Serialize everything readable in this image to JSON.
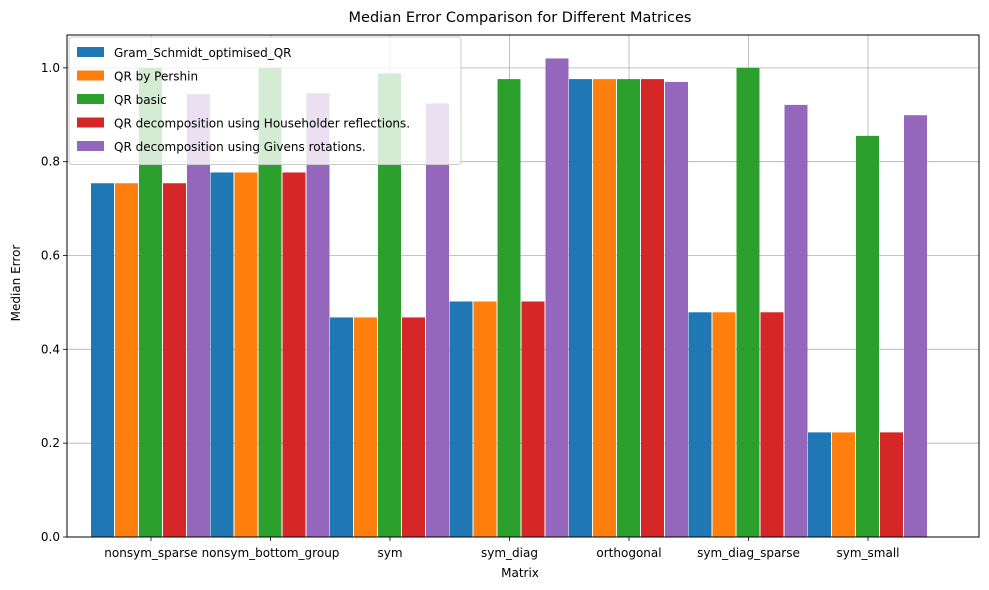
{
  "chart_data": {
    "type": "bar",
    "title": "Median Error Comparison for Different Matrices",
    "xlabel": "Matrix",
    "ylabel": "Median Error",
    "ylim": [
      0,
      1.07
    ],
    "yticks": [
      "0.0",
      "0.2",
      "0.4",
      "0.6",
      "0.8",
      "1.0"
    ],
    "grid": true,
    "legend_position": "top-left",
    "categories": [
      "nonsym_sparse",
      "nonsym_bottom_group",
      "sym",
      "sym_diag",
      "orthogonal",
      "sym_diag_sparse",
      "sym_small"
    ],
    "series": [
      {
        "name": "Gram_Schmidt_optimised_QR",
        "color": "#1f77b4",
        "values": [
          0.754,
          0.777,
          0.468,
          0.502,
          0.976,
          0.479,
          0.223
        ]
      },
      {
        "name": "QR by Pershin",
        "color": "#ff7f0e",
        "values": [
          0.754,
          0.777,
          0.468,
          0.502,
          0.976,
          0.479,
          0.223
        ]
      },
      {
        "name": "QR basic",
        "color": "#2ca02c",
        "values": [
          1.0,
          1.0,
          0.988,
          0.976,
          0.976,
          1.0,
          0.855
        ]
      },
      {
        "name": "QR decomposition using Householder reflections.",
        "color": "#d62728",
        "values": [
          0.754,
          0.777,
          0.468,
          0.502,
          0.976,
          0.479,
          0.223
        ]
      },
      {
        "name": "QR decomposition using Givens rotations.",
        "color": "#9467bd",
        "values": [
          0.944,
          0.946,
          0.924,
          1.02,
          0.97,
          0.921,
          0.899
        ]
      }
    ]
  }
}
